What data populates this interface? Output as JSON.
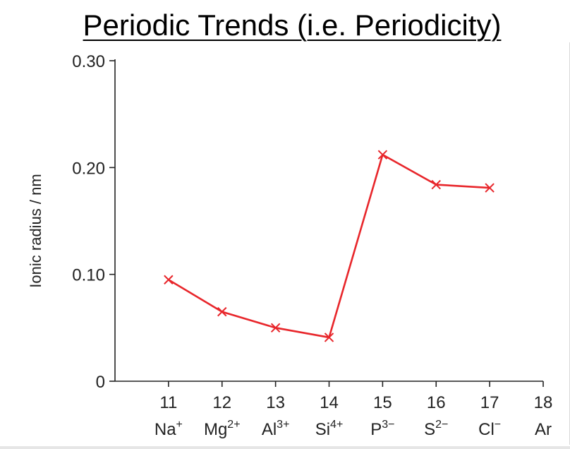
{
  "title": "Periodic Trends (i.e. Periodicity)",
  "chart_data": {
    "type": "line",
    "ylabel": "Ionic radius / nm",
    "xlabel": "",
    "xlim": [
      10,
      18
    ],
    "ylim": [
      0,
      0.3
    ],
    "y_ticks": [
      {
        "value": 0,
        "label": "0"
      },
      {
        "value": 0.1,
        "label": "0.10"
      },
      {
        "value": 0.2,
        "label": "0.20"
      },
      {
        "value": 0.3,
        "label": "0.30"
      }
    ],
    "x_ticks": [
      {
        "value": 11,
        "number": "11",
        "ion": "Na",
        "charge": "+"
      },
      {
        "value": 12,
        "number": "12",
        "ion": "Mg",
        "charge": "2+"
      },
      {
        "value": 13,
        "number": "13",
        "ion": "Al",
        "charge": "3+"
      },
      {
        "value": 14,
        "number": "14",
        "ion": "Si",
        "charge": "4+"
      },
      {
        "value": 15,
        "number": "15",
        "ion": "P",
        "charge": "3−"
      },
      {
        "value": 16,
        "number": "16",
        "ion": "S",
        "charge": "2−"
      },
      {
        "value": 17,
        "number": "17",
        "ion": "Cl",
        "charge": "−"
      },
      {
        "value": 18,
        "number": "18",
        "ion": "Ar",
        "charge": ""
      }
    ],
    "series": [
      {
        "color": "#e8262b",
        "marker": "x",
        "x": [
          11,
          12,
          13,
          14,
          15,
          16,
          17
        ],
        "y": [
          0.095,
          0.065,
          0.05,
          0.041,
          0.212,
          0.184,
          0.181
        ]
      }
    ]
  }
}
